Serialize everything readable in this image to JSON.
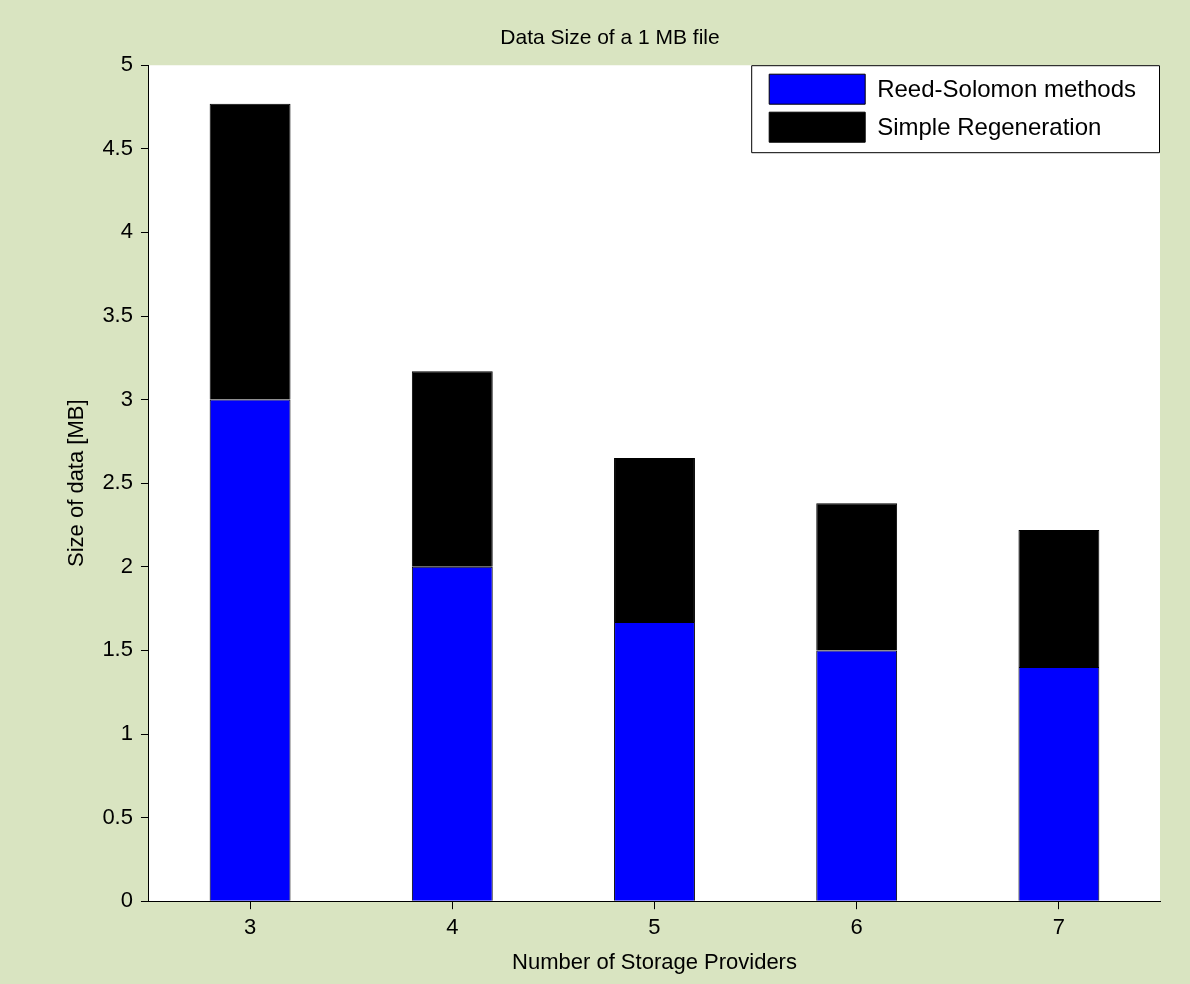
{
  "chart_data": {
    "type": "bar",
    "title": "Data Size of a 1 MB file",
    "xlabel": "Number of Storage Providers",
    "ylabel": "Size of data [MB]",
    "categories": [
      "3",
      "4",
      "5",
      "6",
      "7"
    ],
    "series": [
      {
        "name": "Reed-Solomon methods",
        "color": "#0000ff",
        "values": [
          3,
          2,
          1.67,
          1.5,
          1.4
        ]
      },
      {
        "name": "Simple Regeneration",
        "color": "#000000",
        "values": [
          1.77,
          1.17,
          0.98,
          0.88,
          0.82
        ]
      }
    ],
    "stacked": true,
    "ylim": [
      0,
      5
    ],
    "yticks": [
      0,
      0.5,
      1,
      1.5,
      2,
      2.5,
      3,
      3.5,
      4,
      4.5,
      5
    ],
    "grid": false,
    "legend": "top right"
  }
}
